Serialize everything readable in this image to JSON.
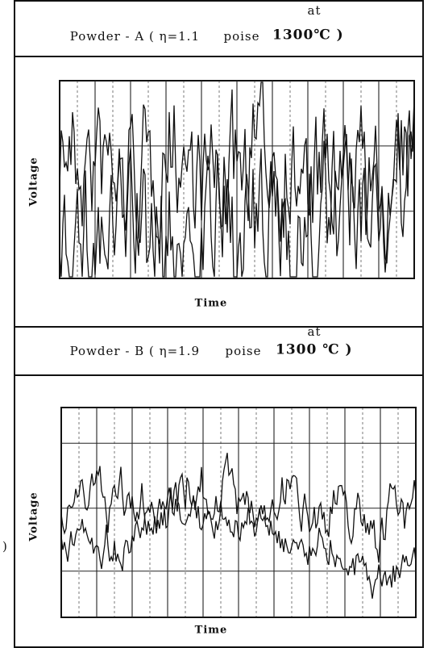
{
  "panels": [
    {
      "title": "Powder - A ( η=1.1",
      "unit": "poise",
      "at": "at",
      "temp": "1300℃ )",
      "y_label": "Voltage",
      "x_label": "Time"
    },
    {
      "title": "Powder - B ( η=1.9",
      "unit": "poise",
      "at": "at",
      "temp": "1300 ℃ )",
      "y_label": "Voltage",
      "x_label": "Time"
    }
  ],
  "stray": ")"
}
